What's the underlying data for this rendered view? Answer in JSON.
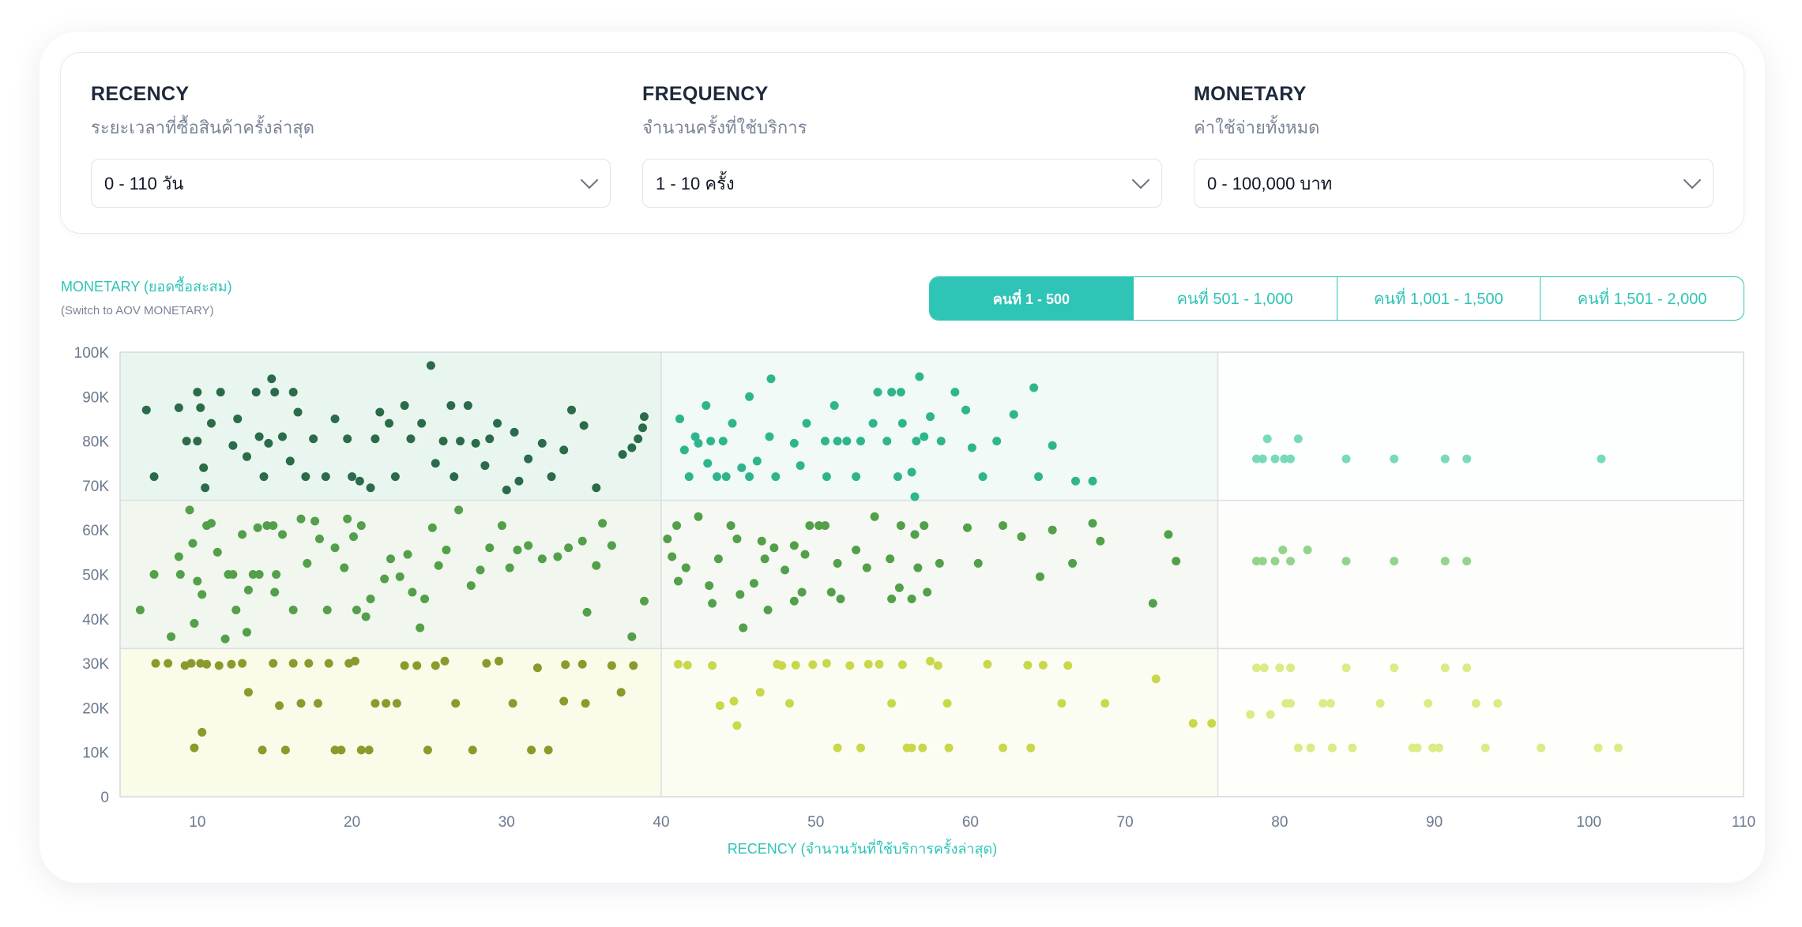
{
  "filters": [
    {
      "title": "RECENCY",
      "subtitle": "ระยะเวลาที่ซื้อสินค้าครั้งล่าสุด",
      "value": "0 - 110 วัน"
    },
    {
      "title": "FREQUENCY",
      "subtitle": "จำนวนครั้งที่ใช้บริการ",
      "value": "1 - 10 ครั้ง"
    },
    {
      "title": "MONETARY",
      "subtitle": "ค่าใช้จ่ายทั้งหมด",
      "value": "0 - 100,000 บาท"
    }
  ],
  "chart_header": {
    "y_title": "MONETARY (ยอดซื้อสะสม)",
    "switch_link": "(Switch to AOV MONETARY)"
  },
  "tabs": [
    {
      "label": "คนที่ 1 - 500",
      "active": true
    },
    {
      "label": "คนที่ 501 - 1,000",
      "active": false
    },
    {
      "label": "คนที่ 1,001 - 1,500",
      "active": false
    },
    {
      "label": "คนที่ 1,501 - 2,000",
      "active": false
    }
  ],
  "colors": {
    "accent": "#2ec4b6",
    "zone_dark_green": "#2a6b4a",
    "zone_teal": "#2fb58e",
    "zone_light_teal": "#78dbb8",
    "zone_green": "#52a049",
    "zone_light_green": "#93d48c",
    "zone_olive": "#8c9a2c",
    "zone_yellow_green": "#c8d84a",
    "zone_pale_yellow": "#dceb86"
  },
  "chart_data": {
    "type": "scatter",
    "xlabel": "RECENCY (จำนวนวันที่ใช้บริการครั้งล่าสุด)",
    "ylabel": "MONETARY (ยอดซื้อสะสม)",
    "xlim": [
      5,
      110
    ],
    "ylim": [
      0,
      100000
    ],
    "x_ticks": [
      10,
      20,
      30,
      40,
      50,
      60,
      70,
      80,
      90,
      100,
      110
    ],
    "y_ticks": [
      0,
      10000,
      20000,
      30000,
      40000,
      50000,
      60000,
      70000,
      80000,
      90000,
      100000
    ],
    "y_tick_labels": [
      "0",
      "10K",
      "20K",
      "30K",
      "40K",
      "50K",
      "60K",
      "70K",
      "80K",
      "90K",
      "100K"
    ],
    "x_splits": [
      40,
      76
    ],
    "y_splits": [
      33333,
      66667
    ],
    "grid": false,
    "points": [
      [
        6.7,
        87000
      ],
      [
        7.2,
        72000
      ],
      [
        8.8,
        87500
      ],
      [
        9.3,
        80000
      ],
      [
        10,
        80000
      ],
      [
        10,
        91000
      ],
      [
        10.2,
        87500
      ],
      [
        10.4,
        74000
      ],
      [
        10.5,
        69500
      ],
      [
        10.9,
        84000
      ],
      [
        11.5,
        91000
      ],
      [
        12.3,
        79000
      ],
      [
        12.6,
        85000
      ],
      [
        13.2,
        76500
      ],
      [
        13.8,
        91000
      ],
      [
        14,
        81000
      ],
      [
        14.3,
        72000
      ],
      [
        14.6,
        79500
      ],
      [
        14.8,
        94000
      ],
      [
        15,
        91000
      ],
      [
        15.5,
        81000
      ],
      [
        16,
        75500
      ],
      [
        16.2,
        91000
      ],
      [
        16.5,
        86500
      ],
      [
        17,
        72000
      ],
      [
        17.5,
        80500
      ],
      [
        18.3,
        72000
      ],
      [
        18.9,
        85000
      ],
      [
        19.7,
        80500
      ],
      [
        20,
        72000
      ],
      [
        20.5,
        71000
      ],
      [
        21.2,
        69500
      ],
      [
        21.5,
        80500
      ],
      [
        21.8,
        86500
      ],
      [
        22.4,
        84000
      ],
      [
        22.8,
        72000
      ],
      [
        23.4,
        88000
      ],
      [
        23.8,
        80500
      ],
      [
        24.5,
        84000
      ],
      [
        25.1,
        97000
      ],
      [
        25.4,
        75000
      ],
      [
        25.9,
        80000
      ],
      [
        26.4,
        88000
      ],
      [
        26.6,
        72000
      ],
      [
        27,
        80000
      ],
      [
        27.5,
        88000
      ],
      [
        28,
        79500
      ],
      [
        28.6,
        74500
      ],
      [
        28.9,
        80500
      ],
      [
        29.4,
        84000
      ],
      [
        30,
        69000
      ],
      [
        30.5,
        82000
      ],
      [
        30.8,
        71000
      ],
      [
        31.4,
        76000
      ],
      [
        32.3,
        79500
      ],
      [
        32.9,
        72000
      ],
      [
        33.7,
        78000
      ],
      [
        34.2,
        87000
      ],
      [
        35,
        83500
      ],
      [
        35.8,
        69500
      ],
      [
        37.5,
        77000
      ],
      [
        38.1,
        78500
      ],
      [
        38.5,
        80500
      ],
      [
        38.8,
        83000
      ],
      [
        38.9,
        85500
      ],
      [
        6.3,
        42000
      ],
      [
        7.2,
        50000
      ],
      [
        8.3,
        36000
      ],
      [
        8.8,
        54000
      ],
      [
        8.9,
        50000
      ],
      [
        9.5,
        64500
      ],
      [
        9.7,
        57000
      ],
      [
        9.8,
        39000
      ],
      [
        10,
        48500
      ],
      [
        10.3,
        45500
      ],
      [
        10.6,
        61000
      ],
      [
        10.9,
        61500
      ],
      [
        11.3,
        55000
      ],
      [
        11.8,
        35500
      ],
      [
        12,
        50000
      ],
      [
        12.3,
        50000
      ],
      [
        12.5,
        42000
      ],
      [
        12.9,
        59000
      ],
      [
        13.2,
        37000
      ],
      [
        13.3,
        46500
      ],
      [
        13.6,
        50000
      ],
      [
        13.9,
        60500
      ],
      [
        14,
        50000
      ],
      [
        14.5,
        61000
      ],
      [
        14.9,
        61000
      ],
      [
        15,
        46000
      ],
      [
        15.1,
        50000
      ],
      [
        15.5,
        59000
      ],
      [
        16.2,
        42000
      ],
      [
        16.7,
        62500
      ],
      [
        17.1,
        52500
      ],
      [
        17.6,
        62000
      ],
      [
        17.9,
        58000
      ],
      [
        18.4,
        42000
      ],
      [
        18.9,
        56000
      ],
      [
        19.5,
        51500
      ],
      [
        19.7,
        62500
      ],
      [
        20.1,
        58500
      ],
      [
        20.3,
        42000
      ],
      [
        20.6,
        61000
      ],
      [
        20.9,
        40500
      ],
      [
        21.2,
        44500
      ],
      [
        22.1,
        49000
      ],
      [
        22.5,
        53500
      ],
      [
        23.1,
        49500
      ],
      [
        23.6,
        54500
      ],
      [
        23.9,
        46000
      ],
      [
        24.4,
        38000
      ],
      [
        24.7,
        44500
      ],
      [
        25.2,
        60500
      ],
      [
        25.6,
        52000
      ],
      [
        26.1,
        55500
      ],
      [
        26.9,
        64500
      ],
      [
        27.7,
        47500
      ],
      [
        28.3,
        51000
      ],
      [
        28.9,
        56000
      ],
      [
        29.7,
        61000
      ],
      [
        30.2,
        51500
      ],
      [
        30.7,
        55500
      ],
      [
        31.4,
        56500
      ],
      [
        32.3,
        53500
      ],
      [
        33.3,
        54000
      ],
      [
        34,
        56000
      ],
      [
        34.9,
        57500
      ],
      [
        35.2,
        41500
      ],
      [
        35.8,
        52000
      ],
      [
        36.2,
        61500
      ],
      [
        36.8,
        56500
      ],
      [
        38.1,
        36000
      ],
      [
        38.9,
        44000
      ],
      [
        7.3,
        30000
      ],
      [
        8.1,
        30000
      ],
      [
        9.2,
        29500
      ],
      [
        9.6,
        30000
      ],
      [
        9.8,
        11000
      ],
      [
        10.2,
        30000
      ],
      [
        10.3,
        14500
      ],
      [
        10.6,
        29800
      ],
      [
        11.4,
        29500
      ],
      [
        12.2,
        29800
      ],
      [
        12.9,
        30000
      ],
      [
        13.3,
        23500
      ],
      [
        14.2,
        10500
      ],
      [
        14.9,
        30000
      ],
      [
        15.3,
        20500
      ],
      [
        15.7,
        10500
      ],
      [
        16.2,
        30000
      ],
      [
        16.7,
        21000
      ],
      [
        17.2,
        30000
      ],
      [
        17.8,
        21000
      ],
      [
        18.5,
        30000
      ],
      [
        18.9,
        10500
      ],
      [
        19.3,
        10500
      ],
      [
        19.8,
        30000
      ],
      [
        20.2,
        30500
      ],
      [
        20.6,
        10500
      ],
      [
        21.1,
        10500
      ],
      [
        21.5,
        21000
      ],
      [
        22.2,
        21000
      ],
      [
        22.9,
        21000
      ],
      [
        23.4,
        29500
      ],
      [
        24.2,
        29500
      ],
      [
        24.9,
        10500
      ],
      [
        25.4,
        29500
      ],
      [
        26,
        30500
      ],
      [
        26.7,
        21000
      ],
      [
        27.8,
        10500
      ],
      [
        28.7,
        30000
      ],
      [
        29.5,
        30500
      ],
      [
        30.4,
        21000
      ],
      [
        31.6,
        10500
      ],
      [
        32,
        29000
      ],
      [
        32.7,
        10500
      ],
      [
        33.7,
        21500
      ],
      [
        33.8,
        29700
      ],
      [
        34.9,
        29800
      ],
      [
        35.1,
        21000
      ],
      [
        36.8,
        29500
      ],
      [
        37.4,
        23500
      ],
      [
        38.2,
        29500
      ],
      [
        41.2,
        85000
      ],
      [
        41.5,
        78000
      ],
      [
        41.8,
        72000
      ],
      [
        42.2,
        81000
      ],
      [
        42.4,
        79500
      ],
      [
        42.9,
        88000
      ],
      [
        43,
        75000
      ],
      [
        43.2,
        80000
      ],
      [
        43.6,
        72000
      ],
      [
        44,
        80000
      ],
      [
        44.2,
        72000
      ],
      [
        44.6,
        84000
      ],
      [
        45.2,
        74000
      ],
      [
        45.7,
        90000
      ],
      [
        45.7,
        72000
      ],
      [
        46.2,
        75500
      ],
      [
        47,
        81000
      ],
      [
        47.1,
        94000
      ],
      [
        47.4,
        72000
      ],
      [
        48.6,
        79500
      ],
      [
        49,
        74500
      ],
      [
        49.4,
        84000
      ],
      [
        50.6,
        80000
      ],
      [
        50.7,
        72000
      ],
      [
        51.2,
        88000
      ],
      [
        51.4,
        80000
      ],
      [
        52,
        80000
      ],
      [
        52.6,
        72000
      ],
      [
        52.9,
        80000
      ],
      [
        53.7,
        84000
      ],
      [
        54,
        91000
      ],
      [
        54.6,
        80000
      ],
      [
        54.9,
        91000
      ],
      [
        55.3,
        72000
      ],
      [
        55.5,
        91000
      ],
      [
        55.6,
        84000
      ],
      [
        56.2,
        73000
      ],
      [
        56.4,
        67500
      ],
      [
        56.5,
        80000
      ],
      [
        56.7,
        94500
      ],
      [
        57,
        81000
      ],
      [
        57.4,
        85500
      ],
      [
        58.1,
        80000
      ],
      [
        59,
        91000
      ],
      [
        59.7,
        87000
      ],
      [
        60.1,
        78500
      ],
      [
        60.8,
        72000
      ],
      [
        61.7,
        80000
      ],
      [
        62.8,
        86000
      ],
      [
        64.1,
        92000
      ],
      [
        64.4,
        72000
      ],
      [
        65.3,
        79000
      ],
      [
        66.8,
        71000
      ],
      [
        67.9,
        71000
      ],
      [
        40.4,
        58000
      ],
      [
        40.7,
        54000
      ],
      [
        41,
        61000
      ],
      [
        41.1,
        48500
      ],
      [
        41.6,
        51500
      ],
      [
        42.4,
        63000
      ],
      [
        43.1,
        47500
      ],
      [
        43.3,
        43500
      ],
      [
        43.7,
        53500
      ],
      [
        44.5,
        61000
      ],
      [
        44.9,
        58000
      ],
      [
        45.1,
        45500
      ],
      [
        45.3,
        38000
      ],
      [
        46,
        48000
      ],
      [
        46.5,
        57500
      ],
      [
        46.7,
        53500
      ],
      [
        46.9,
        42000
      ],
      [
        47.3,
        56000
      ],
      [
        48,
        51000
      ],
      [
        48.6,
        44000
      ],
      [
        48.6,
        56500
      ],
      [
        49.1,
        46000
      ],
      [
        49.3,
        54500
      ],
      [
        49.6,
        61000
      ],
      [
        50.2,
        61000
      ],
      [
        50.6,
        61000
      ],
      [
        51,
        46000
      ],
      [
        51.4,
        52500
      ],
      [
        51.6,
        44500
      ],
      [
        52.6,
        55500
      ],
      [
        53.3,
        51500
      ],
      [
        53.8,
        63000
      ],
      [
        54.8,
        53500
      ],
      [
        54.9,
        44500
      ],
      [
        55.4,
        47000
      ],
      [
        55.5,
        61000
      ],
      [
        56.2,
        44500
      ],
      [
        56.4,
        59000
      ],
      [
        56.6,
        51500
      ],
      [
        57,
        61000
      ],
      [
        57.2,
        46000
      ],
      [
        58,
        52500
      ],
      [
        59.8,
        60500
      ],
      [
        60.5,
        52500
      ],
      [
        62.1,
        61000
      ],
      [
        63.3,
        58500
      ],
      [
        64.5,
        49500
      ],
      [
        65.3,
        60000
      ],
      [
        66.6,
        52500
      ],
      [
        67.9,
        61500
      ],
      [
        68.4,
        57500
      ],
      [
        71.8,
        43500
      ],
      [
        72.8,
        59000
      ],
      [
        73.3,
        53000
      ],
      [
        41.1,
        29800
      ],
      [
        41.7,
        29600
      ],
      [
        43.3,
        29500
      ],
      [
        43.8,
        20500
      ],
      [
        44.7,
        21500
      ],
      [
        44.9,
        16000
      ],
      [
        46.4,
        23500
      ],
      [
        47.5,
        29800
      ],
      [
        47.8,
        29500
      ],
      [
        48.3,
        21000
      ],
      [
        48.7,
        29600
      ],
      [
        49.8,
        29700
      ],
      [
        50.7,
        30000
      ],
      [
        51.4,
        11000
      ],
      [
        52.2,
        29500
      ],
      [
        52.9,
        11000
      ],
      [
        53.4,
        29800
      ],
      [
        54.1,
        29800
      ],
      [
        54.9,
        21000
      ],
      [
        55.6,
        29700
      ],
      [
        55.9,
        11000
      ],
      [
        56.2,
        11000
      ],
      [
        56.9,
        11000
      ],
      [
        57.4,
        30500
      ],
      [
        57.9,
        29500
      ],
      [
        58.5,
        21000
      ],
      [
        58.6,
        11000
      ],
      [
        61.1,
        29800
      ],
      [
        62.1,
        11000
      ],
      [
        63.7,
        29600
      ],
      [
        63.9,
        11000
      ],
      [
        64.7,
        29600
      ],
      [
        65.9,
        21000
      ],
      [
        66.3,
        29500
      ],
      [
        68.7,
        21000
      ],
      [
        72,
        26500
      ],
      [
        74.4,
        16500
      ],
      [
        75.6,
        16500
      ],
      [
        78.5,
        76000
      ],
      [
        78.9,
        76000
      ],
      [
        79.2,
        80500
      ],
      [
        79.7,
        76000
      ],
      [
        80.3,
        76000
      ],
      [
        80.7,
        76000
      ],
      [
        81.2,
        80500
      ],
      [
        84.3,
        76000
      ],
      [
        87.4,
        76000
      ],
      [
        90.7,
        76000
      ],
      [
        92.1,
        76000
      ],
      [
        100.8,
        76000
      ],
      [
        78.5,
        53000
      ],
      [
        78.9,
        53000
      ],
      [
        79.7,
        53000
      ],
      [
        80.2,
        55500
      ],
      [
        80.7,
        53000
      ],
      [
        81.8,
        55500
      ],
      [
        84.3,
        53000
      ],
      [
        87.4,
        53000
      ],
      [
        90.7,
        53000
      ],
      [
        92.1,
        53000
      ],
      [
        78.5,
        29000
      ],
      [
        79,
        29000
      ],
      [
        80,
        29000
      ],
      [
        80.7,
        29000
      ],
      [
        84.3,
        29000
      ],
      [
        87.4,
        29000
      ],
      [
        90.7,
        29000
      ],
      [
        92.1,
        29000
      ],
      [
        78.1,
        18500
      ],
      [
        79.4,
        18500
      ],
      [
        80.4,
        21000
      ],
      [
        80.7,
        21000
      ],
      [
        81.2,
        11000
      ],
      [
        82,
        11000
      ],
      [
        82.8,
        21000
      ],
      [
        83.3,
        21000
      ],
      [
        83.4,
        11000
      ],
      [
        84.7,
        11000
      ],
      [
        86.5,
        21000
      ],
      [
        88.6,
        11000
      ],
      [
        88.9,
        11000
      ],
      [
        89.6,
        21000
      ],
      [
        89.9,
        11000
      ],
      [
        90.3,
        11000
      ],
      [
        92.7,
        21000
      ],
      [
        93.3,
        11000
      ],
      [
        94.1,
        21000
      ],
      [
        96.9,
        11000
      ],
      [
        100.6,
        11000
      ],
      [
        101.9,
        11000
      ]
    ]
  }
}
